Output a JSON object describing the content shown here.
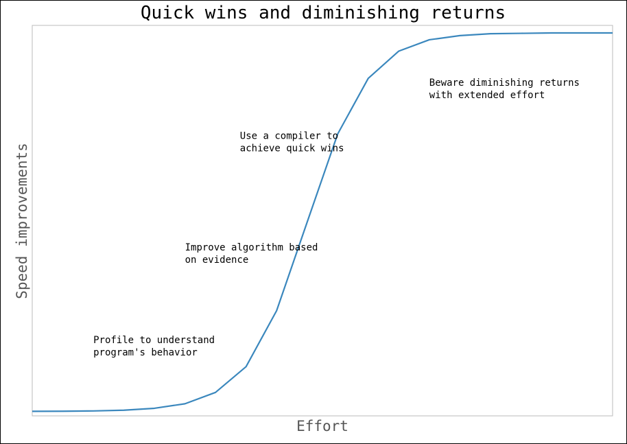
{
  "chart_data": {
    "type": "line",
    "title": "Quick wins and diminishing returns",
    "xlabel": "Effort",
    "ylabel": "Speed improvements",
    "xlim": [
      0,
      19
    ],
    "ylim": [
      -0.012,
      1.02
    ],
    "grid": false,
    "series": [
      {
        "color": "#3a87bd",
        "x": [
          0,
          1,
          2,
          3,
          4,
          5,
          6,
          7,
          8,
          9,
          10,
          11,
          12,
          13,
          14,
          15,
          16,
          17,
          18,
          19
        ],
        "y": [
          0.0,
          0.0003,
          0.001,
          0.003,
          0.008,
          0.02,
          0.05,
          0.118,
          0.266,
          0.5,
          0.733,
          0.88,
          0.952,
          0.982,
          0.993,
          0.998,
          0.999,
          1.0,
          1.0,
          1.0
        ]
      }
    ],
    "annotations": [
      {
        "lines": [
          "Profile to understand",
          "program's behavior"
        ],
        "x": 2,
        "y": 0.18
      },
      {
        "lines": [
          "Improve algorithm based",
          "on evidence"
        ],
        "x": 5,
        "y": 0.425
      },
      {
        "lines": [
          "Use a compiler to",
          "achieve quick wins"
        ],
        "x": 6.8,
        "y": 0.72
      },
      {
        "lines": [
          "Beware diminishing returns",
          "with extended effort"
        ],
        "x": 13,
        "y": 0.86
      }
    ]
  }
}
